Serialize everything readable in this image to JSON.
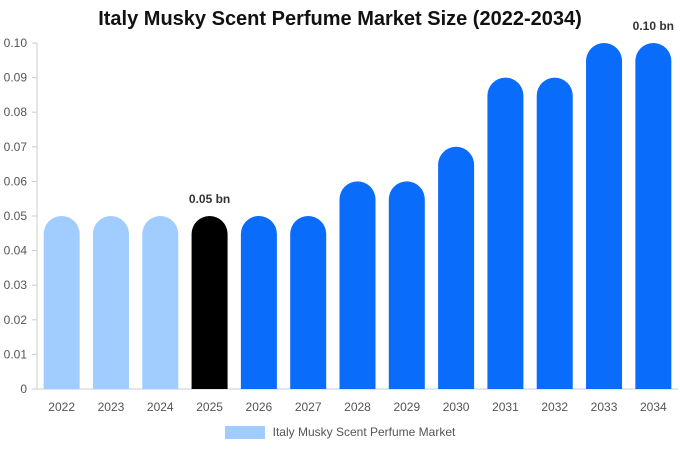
{
  "chart_data": {
    "type": "bar",
    "title": "Italy Musky Scent Perfume Market Size (2022-2034)",
    "categories": [
      "2022",
      "2023",
      "2024",
      "2025",
      "2026",
      "2027",
      "2028",
      "2029",
      "2030",
      "2031",
      "2032",
      "2033",
      "2034"
    ],
    "series": [
      {
        "name": "Italy Musky Scent Perfume Market",
        "values": [
          0.05,
          0.05,
          0.05,
          0.05,
          0.05,
          0.05,
          0.06,
          0.06,
          0.07,
          0.09,
          0.09,
          0.1,
          0.1
        ]
      }
    ],
    "ylim": [
      0,
      0.1
    ],
    "yticks": [
      "0",
      "0.01",
      "0.02",
      "0.03",
      "0.04",
      "0.05",
      "0.06",
      "0.07",
      "0.08",
      "0.09",
      "0.10"
    ],
    "annotations": [
      {
        "category": "2025",
        "text": "0.05 bn"
      },
      {
        "category": "2034",
        "text": "0.10 bn"
      }
    ],
    "grid": false,
    "legend": "bottom",
    "colors": {
      "historical": "#a0cdfe",
      "current": "#000000",
      "forecast": "#0a6cfb",
      "legend_swatch": "#a0cdfe"
    },
    "bar_color_groups": [
      "historical",
      "historical",
      "historical",
      "current",
      "forecast",
      "forecast",
      "forecast",
      "forecast",
      "forecast",
      "forecast",
      "forecast",
      "forecast",
      "forecast"
    ]
  }
}
